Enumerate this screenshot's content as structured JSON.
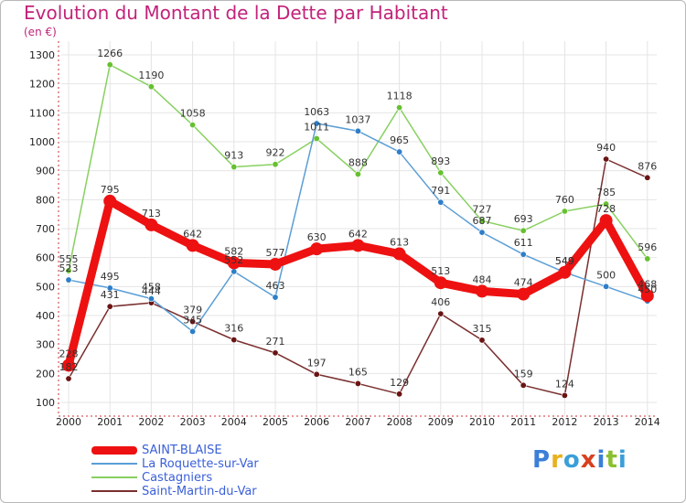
{
  "title": "Evolution du Montant de la Dette par Habitant",
  "subtitle": "(en €)",
  "logo": {
    "letters": [
      "P",
      "r",
      "o",
      "x",
      "i",
      "t",
      "i"
    ],
    "colors": [
      "#3a7fd8",
      "#e8b020",
      "#3a9fd8",
      "#d84020",
      "#3a7fd8",
      "#8ac030",
      "#3a9fd8"
    ]
  },
  "chart_data": {
    "type": "line",
    "x": [
      "2000",
      "2001",
      "2002",
      "2003",
      "2004",
      "2005",
      "2006",
      "2007",
      "2008",
      "2009",
      "2010",
      "2011",
      "2012",
      "2013",
      "2014"
    ],
    "ylim": [
      100,
      1300
    ],
    "yticks": [
      "100",
      "200",
      "300",
      "400",
      "500",
      "600",
      "700",
      "800",
      "900",
      "1000",
      "1100",
      "1200",
      "1300"
    ],
    "grid": true,
    "legend_position": "bottom-left",
    "series": [
      {
        "name": "Saint-Martin-du-Var",
        "color": "#7a2e2e",
        "marker": "#6a1414",
        "width": 1.5,
        "values": [
          182,
          431,
          444,
          379,
          316,
          271,
          197,
          165,
          129,
          406,
          315,
          159,
          124,
          940,
          876
        ],
        "labels": [
          "182",
          "431",
          "444",
          "379",
          "316",
          "271",
          "197",
          "165",
          "129",
          "406",
          "315",
          "159",
          "124",
          "940",
          "876"
        ]
      },
      {
        "name": "Castagniers",
        "color": "#88d060",
        "marker": "#66c030",
        "width": 1.5,
        "values": [
          555,
          1266,
          1190,
          1058,
          913,
          922,
          1011,
          888,
          1118,
          893,
          727,
          693,
          760,
          785,
          596
        ],
        "labels": [
          "555",
          "1266",
          "1190",
          "1058",
          "913",
          "922",
          "1011",
          "888",
          "1118",
          "893",
          "727",
          "693",
          "760",
          "785",
          "596"
        ]
      },
      {
        "name": "La Roquette-sur-Var",
        "color": "#5b9ed6",
        "marker": "#2d7ec8",
        "width": 1.5,
        "values": [
          523,
          495,
          458,
          345,
          552,
          463,
          1063,
          1037,
          965,
          791,
          687,
          611,
          549,
          500,
          450
        ],
        "labels": [
          "523",
          "495",
          "458",
          "345",
          "552",
          "463",
          "1063",
          "1037",
          "965",
          "791",
          "687",
          "611",
          "549",
          "500",
          "450"
        ]
      },
      {
        "name": "SAINT-BLAISE",
        "color": "#ee1111",
        "marker": "#ee1111",
        "width": 9,
        "values": [
          228,
          795,
          713,
          642,
          582,
          577,
          630,
          642,
          613,
          513,
          484,
          474,
          549,
          728,
          468
        ],
        "labels": [
          "228",
          "795",
          "713",
          "642",
          "582",
          "577",
          "630",
          "642",
          "613",
          "513",
          "484",
          "474",
          "549",
          "728",
          "468"
        ]
      }
    ]
  },
  "legend": [
    {
      "name": "SAINT-BLAISE",
      "color": "#ee1111",
      "width": 9
    },
    {
      "name": "La Roquette-sur-Var",
      "color": "#5b9ed6",
      "width": 2
    },
    {
      "name": "Castagniers",
      "color": "#88d060",
      "width": 2
    },
    {
      "name": "Saint-Martin-du-Var",
      "color": "#7a2e2e",
      "width": 2
    }
  ]
}
